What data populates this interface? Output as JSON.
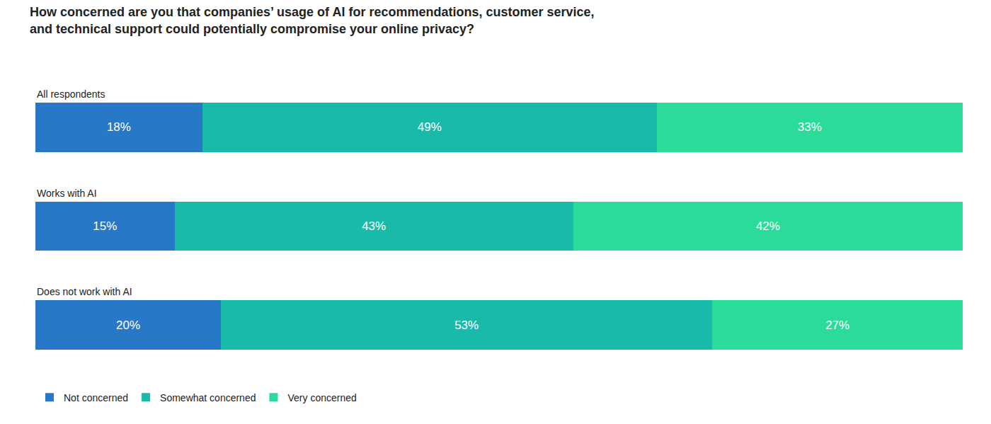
{
  "chart_data": {
    "type": "bar",
    "title": "How concerned are you that companies’ usage of AI for recommendations, customer service,\nand technical support could potentially compromise your online privacy?",
    "categories": [
      "All respondents",
      "Works with AI",
      "Does not work with AI"
    ],
    "series": [
      {
        "name": "Not concerned",
        "color": "#2878C8",
        "values": [
          18,
          15,
          20
        ],
        "value_labels": [
          "18%",
          "15%",
          "20%"
        ]
      },
      {
        "name": "Somewhat concerned",
        "color": "#1ABAAA",
        "values": [
          49,
          43,
          53
        ],
        "value_labels": [
          "49%",
          "43%",
          "53%"
        ]
      },
      {
        "name": "Very concerned",
        "color": "#2ADB99",
        "values": [
          33,
          42,
          27
        ],
        "value_labels": [
          "33%",
          "42%",
          "27%"
        ]
      }
    ],
    "orientation": "horizontal",
    "stacked": true,
    "data_labels": true,
    "xlim": [
      0,
      100
    ],
    "tick_labels": false,
    "grid": false,
    "legend": "lower left"
  }
}
